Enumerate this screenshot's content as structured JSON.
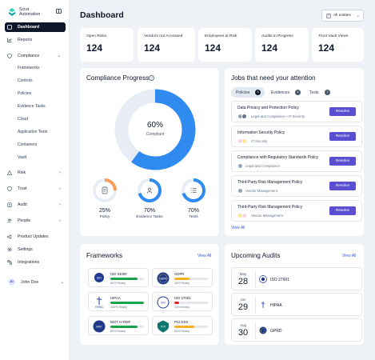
{
  "brand": {
    "name_line1": "Scrut",
    "name_line2": "Automation"
  },
  "sidebar": {
    "items": [
      {
        "label": "Dashboard",
        "icon": "home-icon"
      },
      {
        "label": "Reports",
        "icon": "chart-icon"
      },
      {
        "label": "Compliance",
        "icon": "shield-check-icon",
        "chevron": "⌄"
      },
      {
        "label": "Risk",
        "icon": "warning-icon",
        "chevron": "›"
      },
      {
        "label": "Trust",
        "icon": "shield-icon",
        "chevron": "›"
      },
      {
        "label": "Audit",
        "icon": "clipboard-icon",
        "chevron": "›"
      },
      {
        "label": "People",
        "icon": "people-icon",
        "chevron": "›"
      },
      {
        "label": "Product Updates",
        "icon": "megaphone-icon"
      },
      {
        "label": "Settings",
        "icon": "gear-icon"
      },
      {
        "label": "Integrations",
        "icon": "plug-icon"
      }
    ],
    "compliance_sub": [
      "Frameworks",
      "Controls",
      "Policies",
      "Evidence Tasks",
      "Cloud",
      "Application Tests",
      "Containers",
      "Vault"
    ],
    "user": {
      "initials": "JD",
      "name": "John Doe",
      "chevron": "⌄"
    }
  },
  "header": {
    "title": "Dashboard",
    "entities_label": "All entities",
    "entities_chevron": "⌄"
  },
  "stats": [
    {
      "label": "Open Risks",
      "value": "124"
    },
    {
      "label": "Vendors not Accessed",
      "value": "124"
    },
    {
      "label": "Employees at Risk",
      "value": "124"
    },
    {
      "label": "Audits in Progress",
      "value": "124"
    },
    {
      "label": "Trust Vault Views",
      "value": "124"
    }
  ],
  "compliance_progress": {
    "title": "Compliance Progress",
    "help": "?",
    "overall": {
      "percent": 60,
      "percent_label": "60%",
      "label": "Compliant"
    },
    "breakdown": [
      {
        "label": "Policy",
        "percent": 25,
        "percent_label": "25%",
        "color": "#f5a05a",
        "icon": "document-icon"
      },
      {
        "label": "Evidence Tasks",
        "percent": 70,
        "percent_label": "70%",
        "color": "#2f8bf0",
        "icon": "people-group-icon"
      },
      {
        "label": "Tests",
        "percent": 70,
        "percent_label": "70%",
        "color": "#2f8bf0",
        "icon": "list-icon"
      }
    ],
    "colors": {
      "fill": "#2f8bf0",
      "track": "#e8edf5"
    }
  },
  "jobs": {
    "title": "Jobs that need your attention",
    "tabs": [
      {
        "label": "Policies",
        "count": "5"
      },
      {
        "label": "Evidences",
        "count": "5"
      },
      {
        "label": "Tests",
        "count": "2"
      }
    ],
    "items": [
      {
        "title": "Data Privacy and Protection Policy",
        "tags": "Legal and Compliance • IT Security",
        "action": "Resolve"
      },
      {
        "title": "Information Security Policy",
        "tags": "IT Security",
        "action": "Resolve"
      },
      {
        "title": "Compliance with Regulatory Standards Policy",
        "tags": "Legal and Compliance",
        "action": "Resolve"
      },
      {
        "title": "Third-Party Risk Management Policy",
        "tags": "Vendor Management",
        "action": "Resolve"
      },
      {
        "title": "Third-Party Risk Management Policy",
        "tags": "Vendor Management",
        "action": "Resolve"
      }
    ],
    "view_all": "View All"
  },
  "frameworks": {
    "title": "Frameworks",
    "view_all": "View All",
    "items": [
      {
        "name": "ISO 31000",
        "ready": "80% Ready",
        "progress": 80,
        "color": "#16a34a",
        "logo_text": "ISO",
        "logo_color": "#1f3a93",
        "icon": "iso-31000-logo-icon"
      },
      {
        "name": "GDPR",
        "ready": "45% Ready",
        "progress": 45,
        "color": "#f5b025",
        "logo_text": "GDPR",
        "logo_color": "#1e3a8a",
        "icon": "gdpr-logo-icon"
      },
      {
        "name": "HIPAA",
        "ready": "100% Ready",
        "progress": 100,
        "color": "#16a34a",
        "logo_text": "HIPAA",
        "logo_color": "#1e40af",
        "icon": "hipaa-logo-icon"
      },
      {
        "name": "ISO 27001",
        "ready": "15% Ready",
        "progress": 15,
        "color": "#dc2626",
        "logo_text": "ISO",
        "logo_color": "#1f3a93",
        "icon": "iso-27001-logo-icon"
      },
      {
        "name": "NIST AI RMF",
        "ready": "80% Ready",
        "progress": 80,
        "color": "#16a34a",
        "logo_text": "NIST",
        "logo_color": "#1e3a8a",
        "icon": "nist-logo-icon"
      },
      {
        "name": "PCI DSS",
        "ready": "60% Ready",
        "progress": 60,
        "color": "#f5b025",
        "logo_text": "PCI",
        "logo_color": "#0f766e",
        "icon": "pci-dss-logo-icon"
      }
    ]
  },
  "audits": {
    "title": "Upcoming Audits",
    "view_all": "View All",
    "items": [
      {
        "month": "May",
        "day": "28",
        "name": "ISO 27001",
        "icon": "iso-logo-icon"
      },
      {
        "month": "Jun",
        "day": "29",
        "name": "HIPAA",
        "icon": "hipaa-logo-icon"
      },
      {
        "month": "Aug",
        "day": "30",
        "name": "GPRD",
        "icon": "gdpr-logo-icon"
      }
    ]
  }
}
